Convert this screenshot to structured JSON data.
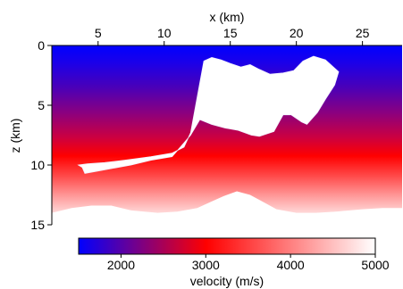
{
  "chart_data": {
    "type": "heatmap",
    "title": "",
    "xlabel": "x (km)",
    "ylabel": "z (km)",
    "xlim": [
      1.5,
      28
    ],
    "ylim": [
      15,
      0
    ],
    "x_ticks": [
      5,
      10,
      15,
      20,
      25
    ],
    "y_ticks": [
      0,
      5,
      10,
      15
    ],
    "colorbar": {
      "label": "velocity (m/s)",
      "range": [
        1500,
        5000
      ],
      "ticks": [
        2000,
        3000,
        4000,
        5000
      ],
      "colors": [
        "#0000ff",
        "#ff0000",
        "#ffffff"
      ]
    },
    "series": [
      {
        "name": "salt body",
        "velocity": 5000,
        "outline_xz": [
          [
            12.5,
            4.3
          ],
          [
            13.0,
            1.3
          ],
          [
            13.6,
            1.0
          ],
          [
            14.3,
            1.2
          ],
          [
            15.0,
            1.5
          ],
          [
            15.8,
            1.8
          ],
          [
            16.5,
            1.6
          ],
          [
            17.2,
            2.0
          ],
          [
            18.0,
            2.4
          ],
          [
            19.0,
            2.3
          ],
          [
            19.8,
            2.1
          ],
          [
            20.5,
            1.3
          ],
          [
            21.3,
            0.9
          ],
          [
            22.2,
            1.2
          ],
          [
            23.2,
            2.2
          ],
          [
            22.9,
            3.3
          ],
          [
            22.2,
            4.5
          ],
          [
            21.6,
            5.6
          ],
          [
            20.8,
            6.6
          ],
          [
            20.4,
            6.4
          ],
          [
            19.6,
            5.8
          ],
          [
            19.0,
            5.8
          ],
          [
            18.3,
            7.2
          ],
          [
            17.2,
            7.6
          ],
          [
            16.6,
            7.5
          ],
          [
            15.6,
            7.1
          ],
          [
            14.6,
            6.9
          ],
          [
            13.6,
            6.6
          ],
          [
            12.7,
            6.2
          ],
          [
            12.0,
            7.5
          ],
          [
            10.6,
            9.3
          ],
          [
            9.0,
            9.6
          ],
          [
            7.5,
            10.0
          ],
          [
            5.0,
            10.5
          ],
          [
            4.0,
            10.7
          ],
          [
            3.8,
            10.2
          ],
          [
            3.5,
            10.0
          ],
          [
            4.2,
            9.9
          ],
          [
            5.5,
            9.8
          ],
          [
            7.0,
            9.6
          ],
          [
            9.0,
            9.3
          ],
          [
            10.6,
            9.0
          ],
          [
            11.5,
            8.5
          ],
          [
            12.0,
            7.3
          ]
        ]
      },
      {
        "name": "model lower boundary",
        "boundary_xz": [
          [
            1.5,
            14.0
          ],
          [
            3.0,
            13.6
          ],
          [
            4.5,
            13.4
          ],
          [
            6.0,
            13.4
          ],
          [
            7.5,
            13.8
          ],
          [
            9.5,
            14.0
          ],
          [
            11.0,
            13.9
          ],
          [
            12.5,
            13.6
          ],
          [
            13.5,
            13.1
          ],
          [
            14.5,
            12.6
          ],
          [
            15.5,
            12.2
          ],
          [
            16.5,
            12.5
          ],
          [
            17.5,
            13.1
          ],
          [
            18.5,
            13.7
          ],
          [
            20.0,
            14.0
          ],
          [
            21.5,
            14.0
          ],
          [
            23.0,
            13.9
          ],
          [
            25.0,
            13.7
          ],
          [
            26.5,
            13.6
          ],
          [
            28.0,
            13.6
          ]
        ]
      }
    ]
  }
}
